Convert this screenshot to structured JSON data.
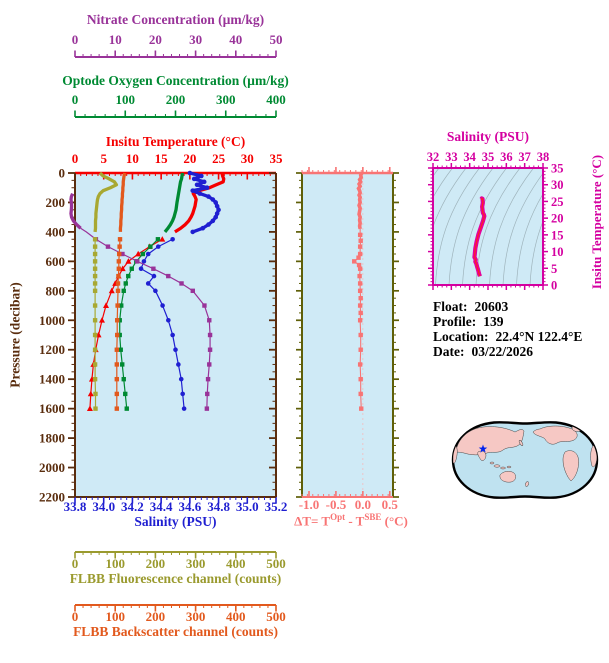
{
  "info": {
    "rows": [
      {
        "label": "Float:",
        "value": "20603"
      },
      {
        "label": "Profile:",
        "value": "139"
      },
      {
        "label": "Location:",
        "value": "22.4°N  122.4°E"
      },
      {
        "label": "Date:",
        "value": "03/22/2026"
      }
    ]
  },
  "colors": {
    "panel_bg": "#cfeaf6",
    "pressure_axis": "#5a2d0e",
    "nitrate": "#993399",
    "oxygen": "#008a33",
    "temperature": "#f50000",
    "salinity": "#1f1fd1",
    "fluorescence": "#9a9a2e",
    "backscatter": "#e2591d",
    "delta_t": "#f87474",
    "delta_y_axis": "#5f5f08",
    "ts_magenta": "#d400a0",
    "map_land": "#f6c8c4",
    "map_ocean": "#bfe2f0",
    "star": "#0022ee"
  },
  "chart_data": [
    {
      "id": "main-profile",
      "type": "line",
      "title": "Vertical sensor profiles vs pressure",
      "y_axis": {
        "label": "Pressure (decibar)",
        "min": 0,
        "max": 2200,
        "ticks": [
          0,
          200,
          400,
          600,
          800,
          1000,
          1200,
          1400,
          1600,
          1800,
          2000,
          2200
        ],
        "minor_step": 50,
        "color": "#5a2d0e"
      },
      "x_axes": {
        "nitrate": {
          "label": "Nitrate Concentration (µm/kg)",
          "min": 0,
          "max": 50,
          "ticks": [
            0,
            10,
            20,
            30,
            40,
            50
          ],
          "minor_step": 2,
          "color": "#993399"
        },
        "oxygen": {
          "label": "Optode Oxygen Concentration (µm/kg)",
          "min": 0,
          "max": 400,
          "ticks": [
            0,
            100,
            200,
            300,
            400
          ],
          "minor_step": 20,
          "color": "#008a33"
        },
        "temperature": {
          "label": "Insitu Temperature (°C)",
          "min": 0,
          "max": 35,
          "ticks": [
            0,
            5,
            10,
            15,
            20,
            25,
            30,
            35
          ],
          "minor_step": 1,
          "color": "#f50000"
        },
        "salinity": {
          "label": "Salinity (PSU)",
          "min": 33.8,
          "max": 35.2,
          "ticks": [
            33.8,
            34.0,
            34.2,
            34.4,
            34.6,
            34.8,
            35.0,
            35.2
          ],
          "tick_labels": [
            "33.8",
            "34.0",
            "34.2",
            "34.4",
            "34.6",
            "34.8",
            "35.0",
            "35.2"
          ],
          "minor_step": 0.04,
          "color": "#1f1fd1"
        },
        "fluorescence": {
          "label": "FLBB Fluorescence channel (counts)",
          "min": 0,
          "max": 500,
          "ticks": [
            0,
            100,
            200,
            300,
            400,
            500
          ],
          "minor_step": 20,
          "color": "#9a9a2e"
        },
        "backscatter": {
          "label": "FLBB Backscatter channel (counts)",
          "min": 0,
          "max": 500,
          "ticks": [
            0,
            100,
            200,
            300,
            400,
            500
          ],
          "minor_step": 20,
          "color": "#e2591d"
        }
      },
      "series": [
        {
          "name": "temperature",
          "axis": "temperature",
          "color": "#f50000",
          "marker": "triangle",
          "pressure": [
            0,
            20,
            40,
            60,
            80,
            100,
            120,
            140,
            160,
            180,
            200,
            225,
            250,
            275,
            300,
            325,
            350,
            375,
            400,
            450,
            500,
            550,
            600,
            650,
            700,
            750,
            800,
            900,
            1000,
            1100,
            1200,
            1300,
            1400,
            1500,
            1600
          ],
          "values": [
            25.6,
            25.7,
            25.9,
            25.8,
            24.6,
            23.4,
            21.6,
            20.6,
            20.9,
            21.1,
            21.0,
            20.9,
            20.7,
            20.5,
            20.2,
            19.8,
            19.2,
            18.4,
            17.4,
            15.2,
            13.0,
            11.0,
            9.3,
            8.3,
            7.6,
            7.0,
            6.4,
            5.4,
            4.7,
            4.1,
            3.6,
            3.2,
            2.95,
            2.75,
            2.6
          ]
        },
        {
          "name": "salinity",
          "axis": "salinity",
          "color": "#1f1fd1",
          "marker": "circle",
          "pressure": [
            0,
            20,
            40,
            60,
            80,
            100,
            120,
            140,
            160,
            180,
            200,
            225,
            250,
            275,
            300,
            325,
            350,
            375,
            400,
            450,
            500,
            550,
            600,
            650,
            700,
            750,
            800,
            900,
            1000,
            1100,
            1200,
            1300,
            1400,
            1500,
            1600
          ],
          "values": [
            34.6,
            34.68,
            34.63,
            34.7,
            34.65,
            34.72,
            34.62,
            34.67,
            34.73,
            34.76,
            34.78,
            34.79,
            34.8,
            34.79,
            34.78,
            34.76,
            34.73,
            34.69,
            34.62,
            34.48,
            34.38,
            34.31,
            34.28,
            34.26,
            34.35,
            34.31,
            34.36,
            34.41,
            34.45,
            34.48,
            34.5,
            34.52,
            34.54,
            34.55,
            34.56
          ]
        },
        {
          "name": "oxygen",
          "axis": "oxygen",
          "color": "#008a33",
          "marker": "square",
          "pressure": [
            0,
            20,
            40,
            60,
            80,
            100,
            120,
            140,
            160,
            180,
            200,
            225,
            250,
            275,
            300,
            325,
            350,
            375,
            400,
            450,
            500,
            550,
            600,
            650,
            700,
            750,
            800,
            900,
            1000,
            1100,
            1200,
            1300,
            1400,
            1500,
            1600
          ],
          "values": [
            214,
            213,
            212,
            210,
            209,
            208,
            207,
            206,
            205,
            204,
            203,
            202,
            201,
            199,
            197,
            194,
            190,
            185,
            179,
            165,
            150,
            135,
            122,
            113,
            106,
            101,
            97,
            92,
            89,
            89,
            91,
            94,
            97,
            100,
            103
          ]
        },
        {
          "name": "nitrate",
          "axis": "nitrate",
          "color": "#993399",
          "marker": "square",
          "pressure": [
            140,
            160,
            180,
            200,
            225,
            250,
            275,
            300,
            325,
            350,
            375,
            400,
            450,
            500,
            550,
            600,
            650,
            700,
            750,
            800,
            900,
            1000,
            1100,
            1200,
            1300,
            1400,
            1500,
            1600
          ],
          "values": [
            -0.6,
            -0.9,
            -1.0,
            -0.9,
            -0.85,
            -0.9,
            -1.0,
            -0.85,
            -0.4,
            0.4,
            1.4,
            2.8,
            5.2,
            8.2,
            11.8,
            15.5,
            19.5,
            23.2,
            26.5,
            29.3,
            32.2,
            33.4,
            33.6,
            33.6,
            33.4,
            33.1,
            32.9,
            32.8
          ]
        },
        {
          "name": "fluorescence",
          "axis": "fluorescence",
          "color": "#a8a832",
          "marker": "square",
          "pressure": [
            0,
            20,
            40,
            60,
            80,
            100,
            120,
            140,
            160,
            180,
            200,
            225,
            250,
            275,
            300,
            325,
            350,
            375,
            400,
            450,
            500,
            550,
            600,
            650,
            700,
            750,
            800,
            900,
            1000,
            1100,
            1200,
            1300,
            1400,
            1500,
            1600
          ],
          "values": [
            62,
            70,
            85,
            98,
            103,
            88,
            70,
            62,
            58,
            56,
            55,
            54,
            53,
            52,
            52,
            51,
            51,
            51,
            50,
            50,
            50,
            50,
            50,
            50,
            50,
            50,
            50,
            50,
            50,
            50,
            50,
            50,
            50,
            51,
            51
          ]
        },
        {
          "name": "backscatter",
          "axis": "backscatter",
          "color": "#e2591d",
          "marker": "square",
          "pressure": [
            0,
            20,
            40,
            60,
            80,
            100,
            120,
            140,
            160,
            180,
            200,
            225,
            250,
            275,
            300,
            325,
            350,
            375,
            400,
            450,
            500,
            550,
            600,
            650,
            700,
            750,
            800,
            900,
            1000,
            1100,
            1200,
            1300,
            1400,
            1500,
            1600
          ],
          "values": [
            124,
            122,
            121,
            120,
            120,
            119,
            119,
            118,
            118,
            117,
            117,
            116,
            116,
            115,
            115,
            114,
            114,
            113,
            113,
            112,
            111,
            110,
            109,
            109,
            108,
            107,
            107,
            106,
            105,
            105,
            104,
            104,
            104,
            104,
            104
          ]
        }
      ]
    },
    {
      "id": "delta-t",
      "type": "line",
      "x_axis": {
        "label_parts": {
          "p1": "ΔT= T",
          "s1": "Opt",
          "p2": " - T",
          "s2": "SBE",
          "p3": " (°C)"
        },
        "min": -1.13,
        "max": 0.56,
        "ticks": [
          -1.0,
          -0.5,
          0.0,
          0.5
        ],
        "tick_labels": [
          "-1.0",
          "-0.5",
          "0.0",
          "0.5"
        ],
        "minor_step": 0.1,
        "color": "#f87474"
      },
      "y_axis": {
        "min": 0,
        "max": 2200,
        "major_step": 200,
        "minor_step": 50,
        "color": "#5f5f08"
      },
      "series": [
        {
          "name": "temperature-difference",
          "color": "#f87474",
          "marker": "square",
          "pressure": [
            0,
            15,
            30,
            45,
            60,
            75,
            90,
            105,
            120,
            135,
            150,
            165,
            180,
            200,
            220,
            240,
            260,
            280,
            300,
            320,
            340,
            360,
            380,
            420,
            460,
            500,
            550,
            575,
            600,
            625,
            650,
            700,
            750,
            800,
            850,
            900,
            950,
            1000,
            1100,
            1200,
            1300,
            1400,
            1500,
            1600
          ],
          "values": [
            -0.02,
            -0.04,
            -0.03,
            -0.06,
            -0.04,
            -0.07,
            -0.05,
            -0.08,
            -0.06,
            -0.05,
            -0.07,
            -0.05,
            -0.06,
            -0.05,
            -0.07,
            -0.05,
            -0.06,
            -0.07,
            -0.05,
            -0.06,
            -0.05,
            -0.06,
            -0.05,
            -0.05,
            -0.04,
            -0.05,
            -0.05,
            -0.08,
            -0.16,
            -0.07,
            -0.05,
            -0.06,
            -0.05,
            -0.05,
            -0.04,
            -0.05,
            -0.04,
            -0.05,
            -0.04,
            -0.04,
            -0.05,
            -0.04,
            -0.04,
            -0.03
          ]
        }
      ]
    },
    {
      "id": "ts-diagram",
      "type": "line",
      "background": "sigma-theta density contours",
      "x_axis": {
        "label": "Salinity (PSU)",
        "min": 32,
        "max": 38,
        "ticks": [
          32,
          33,
          34,
          35,
          36,
          37,
          38
        ],
        "minor_step": 0.25,
        "color": "#d400a0"
      },
      "y_axis": {
        "label": "Insitu Temperature (°C)",
        "min": 0,
        "max": 35,
        "ticks": [
          0,
          5,
          10,
          15,
          20,
          25,
          30,
          35
        ],
        "minor_step": 1,
        "color": "#d400a0"
      },
      "series": [
        {
          "name": "t-s-curve",
          "color": "#e2009e",
          "salinity": [
            34.62,
            34.64,
            34.66,
            34.7,
            34.72,
            34.68,
            34.72,
            34.78,
            34.8,
            34.78,
            34.73,
            34.62,
            34.48,
            34.38,
            34.31,
            34.28,
            34.26,
            34.33,
            34.31,
            34.36,
            34.41,
            34.45,
            34.48,
            34.5,
            34.52,
            34.54,
            34.56
          ],
          "temperature": [
            25.6,
            25.7,
            25.9,
            25.8,
            24.6,
            23.4,
            21.6,
            21.0,
            20.6,
            20.2,
            19.2,
            17.4,
            15.2,
            13.0,
            11.0,
            9.3,
            8.3,
            7.6,
            7.0,
            6.4,
            5.4,
            4.7,
            4.1,
            3.6,
            3.2,
            2.95,
            2.6
          ]
        }
      ]
    }
  ]
}
